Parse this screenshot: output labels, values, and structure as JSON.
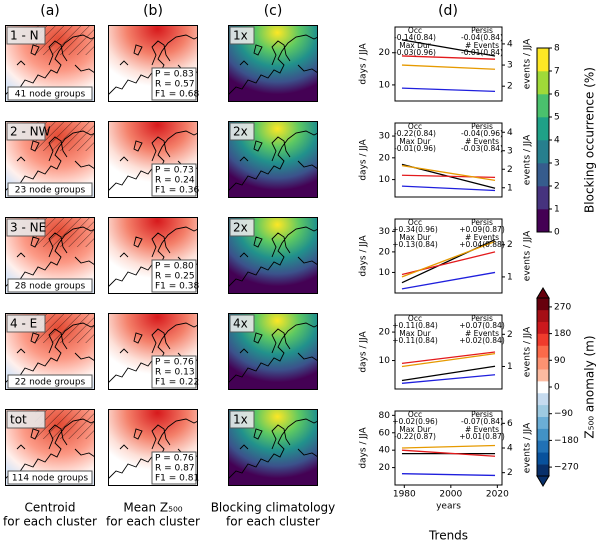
{
  "column_labels": [
    "(a)",
    "(b)",
    "(c)",
    "(d)"
  ],
  "captions": [
    [
      "Centroid",
      "for each cluster"
    ],
    [
      "Mean Z₅₀₀",
      "for each cluster"
    ],
    [
      "Blocking climatology",
      "for each cluster"
    ],
    [
      "Trends"
    ]
  ],
  "rows": [
    {
      "cluster": "1 - N",
      "node_groups": "41 node groups",
      "stats": [
        "P = 0.83",
        "R = 0.57",
        "F1 = 0.68"
      ],
      "multiplier": "1x"
    },
    {
      "cluster": "2 - NW",
      "node_groups": "23 node groups",
      "stats": [
        "P = 0.73",
        "R = 0.24",
        "F1 = 0.36"
      ],
      "multiplier": "2x"
    },
    {
      "cluster": "3 - NE",
      "node_groups": "28 node groups",
      "stats": [
        "P = 0.80",
        "R = 0.25",
        "F1 = 0.38"
      ],
      "multiplier": "2x"
    },
    {
      "cluster": "4 - E",
      "node_groups": "22 node groups",
      "stats": [
        "P = 0.76",
        "R = 0.13",
        "F1 = 0.22"
      ],
      "multiplier": "4x"
    },
    {
      "cluster": "tot",
      "node_groups": "114 node groups",
      "stats": [
        "P = 0.76",
        "R = 0.87",
        "F1 = 0.81"
      ],
      "multiplier": "1x"
    }
  ],
  "chart_data": [
    {
      "type": "line",
      "ylabel": "days / JJA",
      "y2label": "events / JJA",
      "xlim": [
        1976,
        2022
      ],
      "x": [
        1979,
        2019
      ],
      "ylim": [
        5,
        28
      ],
      "yticks": [
        10,
        20
      ],
      "y2lim": [
        1.3,
        4.8
      ],
      "y2ticks": [
        2,
        3,
        4
      ],
      "series": [
        {
          "name": "Occ",
          "trend": "-0.14(0.84)",
          "color": "#000000",
          "values": [
            24,
            19
          ]
        },
        {
          "name": "Persis",
          "trend": "-0.04(0.84)",
          "color": "#1f1fdd",
          "values": [
            9,
            8
          ]
        },
        {
          "name": "Max Dur",
          "trend": "-0.03(0.96)",
          "color": "#e31a1c",
          "values": [
            19,
            18
          ]
        },
        {
          "name": "# Events",
          "trend": "-0.01(0.84)",
          "color": "#e69a00",
          "values": [
            3.0,
            2.8
          ],
          "axis": "y2"
        }
      ]
    },
    {
      "type": "line",
      "ylabel": "days / JJA",
      "y2label": "events / JJA",
      "xlim": [
        1976,
        2022
      ],
      "x": [
        1979,
        2019
      ],
      "ylim": [
        2,
        36
      ],
      "yticks": [
        10,
        20,
        30
      ],
      "y2lim": [
        0.5,
        4.5
      ],
      "y2ticks": [
        1,
        2,
        3,
        4
      ],
      "series": [
        {
          "name": "Occ",
          "trend": "-0.22(0.84)",
          "color": "#000000",
          "values": [
            17,
            6
          ]
        },
        {
          "name": "Persis",
          "trend": "-0.04(0.96)",
          "color": "#1f1fdd",
          "values": [
            7,
            5
          ]
        },
        {
          "name": "Max Dur",
          "trend": "-0.01(0.96)",
          "color": "#e31a1c",
          "values": [
            12,
            11
          ]
        },
        {
          "name": "# Events",
          "trend": "-0.03(0.84)",
          "color": "#e69a00",
          "values": [
            2.2,
            1.4
          ],
          "axis": "y2"
        }
      ]
    },
    {
      "type": "line",
      "ylabel": "days / JJA",
      "y2label": "events / JJA",
      "xlim": [
        1976,
        2022
      ],
      "x": [
        1979,
        2019
      ],
      "ylim": [
        0,
        36
      ],
      "yticks": [
        10,
        20,
        30
      ],
      "y2lim": [
        0.5,
        2.8
      ],
      "y2ticks": [
        1,
        2
      ],
      "series": [
        {
          "name": "Occ",
          "trend": "+0.34(0.96)",
          "color": "#000000",
          "values": [
            5,
            26
          ]
        },
        {
          "name": "Persis",
          "trend": "+0.09(0.87)",
          "color": "#1f1fdd",
          "values": [
            2,
            10
          ]
        },
        {
          "name": "Max Dur",
          "trend": "+0.13(0.84)",
          "color": "#e31a1c",
          "values": [
            9,
            20
          ]
        },
        {
          "name": "# Events",
          "trend": "+0.04(0.88)",
          "color": "#e69a00",
          "values": [
            1.0,
            2.1
          ],
          "axis": "y2"
        }
      ]
    },
    {
      "type": "line",
      "ylabel": "days / JJA",
      "y2label": "events / JJA",
      "xlim": [
        1976,
        2022
      ],
      "x": [
        1979,
        2019
      ],
      "ylim": [
        0,
        26
      ],
      "yticks": [
        10,
        20
      ],
      "y2lim": [
        0.3,
        2.6
      ],
      "y2ticks": [
        1,
        2
      ],
      "series": [
        {
          "name": "Occ",
          "trend": "+0.11(0.84)",
          "color": "#000000",
          "values": [
            3,
            8
          ]
        },
        {
          "name": "Persis",
          "trend": "+0.07(0.84)",
          "color": "#1f1fdd",
          "values": [
            2,
            5
          ]
        },
        {
          "name": "Max Dur",
          "trend": "+0.11(0.84)",
          "color": "#e31a1c",
          "values": [
            9,
            13
          ]
        },
        {
          "name": "# Events",
          "trend": "+0.02(0.84)",
          "color": "#e69a00",
          "values": [
            1.0,
            1.4
          ],
          "axis": "y2"
        }
      ]
    },
    {
      "type": "line",
      "ylabel": "days / JJA",
      "y2label": "events / JJA",
      "xlabel": "years",
      "xlim": [
        1976,
        2022
      ],
      "x": [
        1979,
        2019
      ],
      "xticks": [
        1980,
        2000,
        2020
      ],
      "ylim": [
        0,
        85
      ],
      "yticks": [
        20,
        40,
        60,
        80
      ],
      "y2lim": [
        1,
        7
      ],
      "y2ticks": [
        2,
        4,
        6
      ],
      "series": [
        {
          "name": "Occ",
          "trend": "+0.02(0.96)",
          "color": "#000000",
          "values": [
            36,
            36
          ]
        },
        {
          "name": "Persis",
          "trend": "-0.07(0.84)",
          "color": "#1f1fdd",
          "values": [
            13,
            11
          ]
        },
        {
          "name": "Max Dur",
          "trend": "-0.22(0.87)",
          "color": "#e31a1c",
          "values": [
            40,
            33
          ]
        },
        {
          "name": "# Events",
          "trend": "+0.01(0.87)",
          "color": "#e69a00",
          "values": [
            4.0,
            4.2
          ],
          "axis": "y2"
        }
      ]
    }
  ],
  "colorbars": [
    {
      "label": "Blocking occurrence (%)",
      "lim": [
        0,
        8
      ],
      "ticks": [
        0,
        1,
        2,
        3,
        4,
        5,
        6,
        7,
        8
      ],
      "colors": [
        "#440154",
        "#46337e",
        "#365c8d",
        "#277f8e",
        "#1fa187",
        "#4ac16d",
        "#a0da39",
        "#fde725"
      ]
    },
    {
      "label": "Z₅₀₀ anomaly (m)",
      "lim": [
        -300,
        300
      ],
      "ticks": [
        {
          "value": -270,
          "label": "−270"
        },
        {
          "value": -180,
          "label": "−180"
        },
        {
          "value": -90,
          "label": "−90"
        },
        0,
        90,
        180,
        270
      ],
      "colors": [
        "#08306b",
        "#08519c",
        "#2171b5",
        "#4292c6",
        "#6baed6",
        "#9ecae1",
        "#c6dbef",
        "#ffffff",
        "#fcbba1",
        "#fc9272",
        "#fb6a4a",
        "#ef3b2c",
        "#cb181d",
        "#a50f15",
        "#67000d"
      ]
    }
  ]
}
